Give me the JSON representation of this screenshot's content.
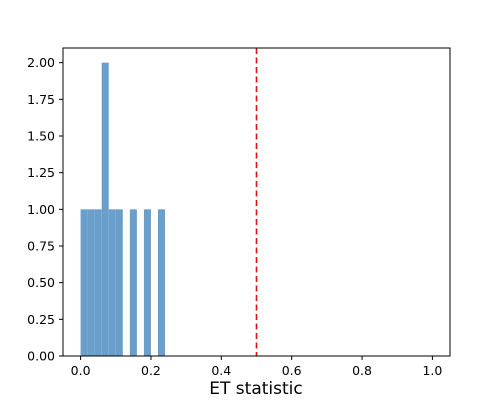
{
  "chart_data": {
    "type": "bar",
    "title": "",
    "xlabel": "ET statistic",
    "ylabel": "",
    "xlim": [
      -0.05,
      1.05
    ],
    "ylim": [
      0,
      2.1
    ],
    "x_ticks": [
      0.0,
      0.2,
      0.4,
      0.6,
      0.8,
      1.0
    ],
    "x_tick_labels": [
      "0.0",
      "0.2",
      "0.4",
      "0.6",
      "0.8",
      "1.0"
    ],
    "y_ticks": [
      0.0,
      0.25,
      0.5,
      0.75,
      1.0,
      1.25,
      1.5,
      1.75,
      2.0
    ],
    "y_tick_labels": [
      "0.00",
      "0.25",
      "0.50",
      "0.75",
      "1.00",
      "1.25",
      "1.50",
      "1.75",
      "2.00"
    ],
    "bins": [
      {
        "x0": 0.0,
        "x1": 0.02,
        "value": 1
      },
      {
        "x0": 0.02,
        "x1": 0.04,
        "value": 1
      },
      {
        "x0": 0.04,
        "x1": 0.06,
        "value": 1
      },
      {
        "x0": 0.06,
        "x1": 0.08,
        "value": 2
      },
      {
        "x0": 0.08,
        "x1": 0.1,
        "value": 1
      },
      {
        "x0": 0.1,
        "x1": 0.12,
        "value": 1
      },
      {
        "x0": 0.14,
        "x1": 0.16,
        "value": 1
      },
      {
        "x0": 0.18,
        "x1": 0.2,
        "value": 1
      },
      {
        "x0": 0.22,
        "x1": 0.24,
        "value": 1
      }
    ],
    "bar_color": "#6a9fcb",
    "reference_line": {
      "x": 0.5,
      "color": "#e01010",
      "style": "dashed"
    },
    "grid": false,
    "legend": "none"
  }
}
